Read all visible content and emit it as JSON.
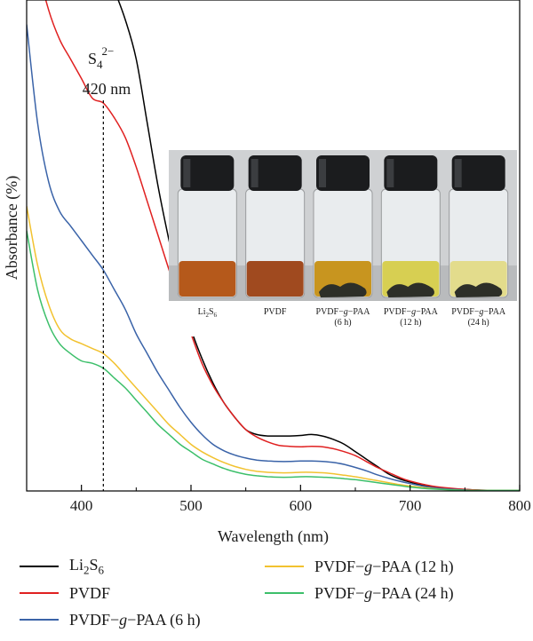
{
  "chart_data": {
    "type": "line",
    "xlabel": "Wavelength (nm)",
    "ylabel": "Absorbance (%)",
    "xlim": [
      350,
      800
    ],
    "x_ticks": [
      "400",
      "500",
      "600",
      "700",
      "800"
    ],
    "y_ticks_visible": false,
    "grid": false,
    "annotation": {
      "species_base": "S",
      "species_sub": "4",
      "species_sup": "2−",
      "wavelength_label": "420 nm",
      "x": 420
    },
    "inset_photo": {
      "vials": [
        {
          "label_base": "Li",
          "label_sub1": "2",
          "label_mid": "S",
          "label_sub2": "6",
          "line2": "",
          "liquid": "#b5591b",
          "solid": false
        },
        {
          "label_base": "PVDF",
          "label_sub1": "",
          "label_mid": "",
          "label_sub2": "",
          "line2": "",
          "liquid": "#a04a1f",
          "solid": false
        },
        {
          "label_base": "PVDF−",
          "label_italic": "g",
          "label_tail": "−PAA",
          "line2": "(6 h)",
          "liquid": "#c8951f",
          "solid": true
        },
        {
          "label_base": "PVDF−",
          "label_italic": "g",
          "label_tail": "−PAA",
          "line2": "(12 h)",
          "liquid": "#d7cf52",
          "solid": true
        },
        {
          "label_base": "PVDF−",
          "label_italic": "g",
          "label_tail": "−PAA",
          "line2": "(24 h)",
          "liquid": "#e3dc8c",
          "solid": true
        }
      ]
    },
    "series": [
      {
        "name_base": "Li",
        "name_sub1": "2",
        "name_mid": "S",
        "name_sub2": "6",
        "color": "#000000",
        "x": [
          350,
          380,
          400,
          410,
          420,
          430,
          440,
          450,
          460,
          470,
          480,
          490,
          500,
          510,
          520,
          530,
          540,
          550,
          560,
          570,
          580,
          590,
          600,
          610,
          620,
          630,
          640,
          650,
          660,
          670,
          680,
          690,
          700,
          720,
          740,
          760,
          780,
          800
        ],
        "y": [
          140,
          130,
          118,
          112,
          107,
          102,
          96,
          88,
          75,
          62,
          51,
          41,
          33,
          27,
          22,
          18,
          15,
          12.5,
          11.5,
          11.2,
          11.2,
          11.2,
          11.3,
          11.5,
          11.2,
          10.5,
          9.5,
          8,
          6.5,
          5,
          3.5,
          2.5,
          1.8,
          0.8,
          0.4,
          0.2,
          0.1,
          0.1
        ]
      },
      {
        "name_base": "PVDF",
        "color": "#e02020",
        "x": [
          350,
          360,
          370,
          380,
          390,
          400,
          410,
          420,
          430,
          440,
          450,
          460,
          470,
          480,
          490,
          500,
          510,
          520,
          530,
          540,
          550,
          560,
          570,
          580,
          590,
          600,
          610,
          620,
          630,
          640,
          650,
          660,
          670,
          680,
          690,
          700,
          720,
          740,
          760,
          780,
          800
        ],
        "y": [
          120,
          107,
          98,
          92,
          88,
          84,
          80,
          79,
          76,
          72,
          66,
          59,
          52,
          45,
          38,
          32,
          26,
          21.5,
          18,
          15,
          12.5,
          11,
          10,
          9.3,
          9.1,
          9.0,
          9.1,
          9.0,
          8.6,
          8.0,
          7.2,
          6.0,
          4.8,
          3.8,
          2.8,
          2.0,
          1.0,
          0.5,
          0.2,
          0.1,
          0.1
        ]
      },
      {
        "name_base": "PVDF−",
        "name_italic": "g",
        "name_tail": "−PAA (6 h)",
        "color": "#3a63a8",
        "x": [
          350,
          360,
          370,
          380,
          390,
          400,
          410,
          420,
          430,
          440,
          450,
          460,
          470,
          480,
          490,
          500,
          510,
          520,
          530,
          540,
          550,
          560,
          570,
          580,
          590,
          600,
          610,
          620,
          630,
          640,
          650,
          660,
          670,
          680,
          690,
          700,
          720,
          740,
          760,
          780,
          800
        ],
        "y": [
          95,
          75,
          63,
          57,
          54,
          51,
          48,
          45,
          41,
          37,
          32,
          28,
          24,
          20.5,
          17,
          14,
          11.5,
          9.5,
          8.2,
          7.3,
          6.7,
          6.3,
          6.1,
          6.0,
          6.0,
          6.1,
          6.1,
          6.0,
          5.8,
          5.4,
          4.8,
          4.1,
          3.3,
          2.6,
          2.0,
          1.5,
          0.7,
          0.3,
          0.1,
          0.1,
          0.1
        ]
      },
      {
        "name_base": "PVDF−",
        "name_italic": "g",
        "name_tail": "−PAA (12 h)",
        "color": "#f2c230",
        "x": [
          350,
          360,
          370,
          380,
          390,
          400,
          410,
          420,
          430,
          440,
          450,
          460,
          470,
          480,
          490,
          500,
          510,
          520,
          530,
          540,
          550,
          560,
          570,
          580,
          590,
          600,
          610,
          620,
          630,
          640,
          650,
          660,
          670,
          680,
          690,
          700,
          720,
          740,
          760,
          780,
          800
        ],
        "y": [
          58,
          46,
          38,
          33,
          31,
          30,
          29,
          28,
          26,
          23.5,
          21,
          18.5,
          16,
          13.5,
          11.5,
          9.5,
          8,
          6.8,
          5.8,
          5.0,
          4.4,
          4.0,
          3.8,
          3.7,
          3.7,
          3.8,
          3.8,
          3.7,
          3.5,
          3.2,
          2.9,
          2.5,
          2.1,
          1.7,
          1.3,
          1.0,
          0.5,
          0.2,
          0.1,
          0.1,
          0.1
        ]
      },
      {
        "name_base": "PVDF−",
        "name_italic": "g",
        "name_tail": "−PAA (24 h)",
        "color": "#3cbf6a",
        "x": [
          350,
          360,
          370,
          380,
          390,
          400,
          410,
          420,
          430,
          440,
          450,
          460,
          470,
          480,
          490,
          500,
          510,
          520,
          530,
          540,
          550,
          560,
          570,
          580,
          590,
          600,
          610,
          620,
          630,
          640,
          650,
          660,
          670,
          680,
          690,
          700,
          720,
          740,
          760,
          780,
          800
        ],
        "y": [
          53,
          41,
          34,
          30,
          28,
          26.5,
          26,
          25,
          23,
          21,
          18.5,
          16,
          13.5,
          11.5,
          9.5,
          8,
          6.5,
          5.5,
          4.6,
          3.9,
          3.4,
          3.1,
          2.9,
          2.8,
          2.8,
          2.9,
          2.9,
          2.8,
          2.7,
          2.5,
          2.3,
          2.0,
          1.7,
          1.4,
          1.1,
          0.8,
          0.4,
          0.2,
          0.1,
          0.1,
          0.1
        ]
      }
    ]
  }
}
